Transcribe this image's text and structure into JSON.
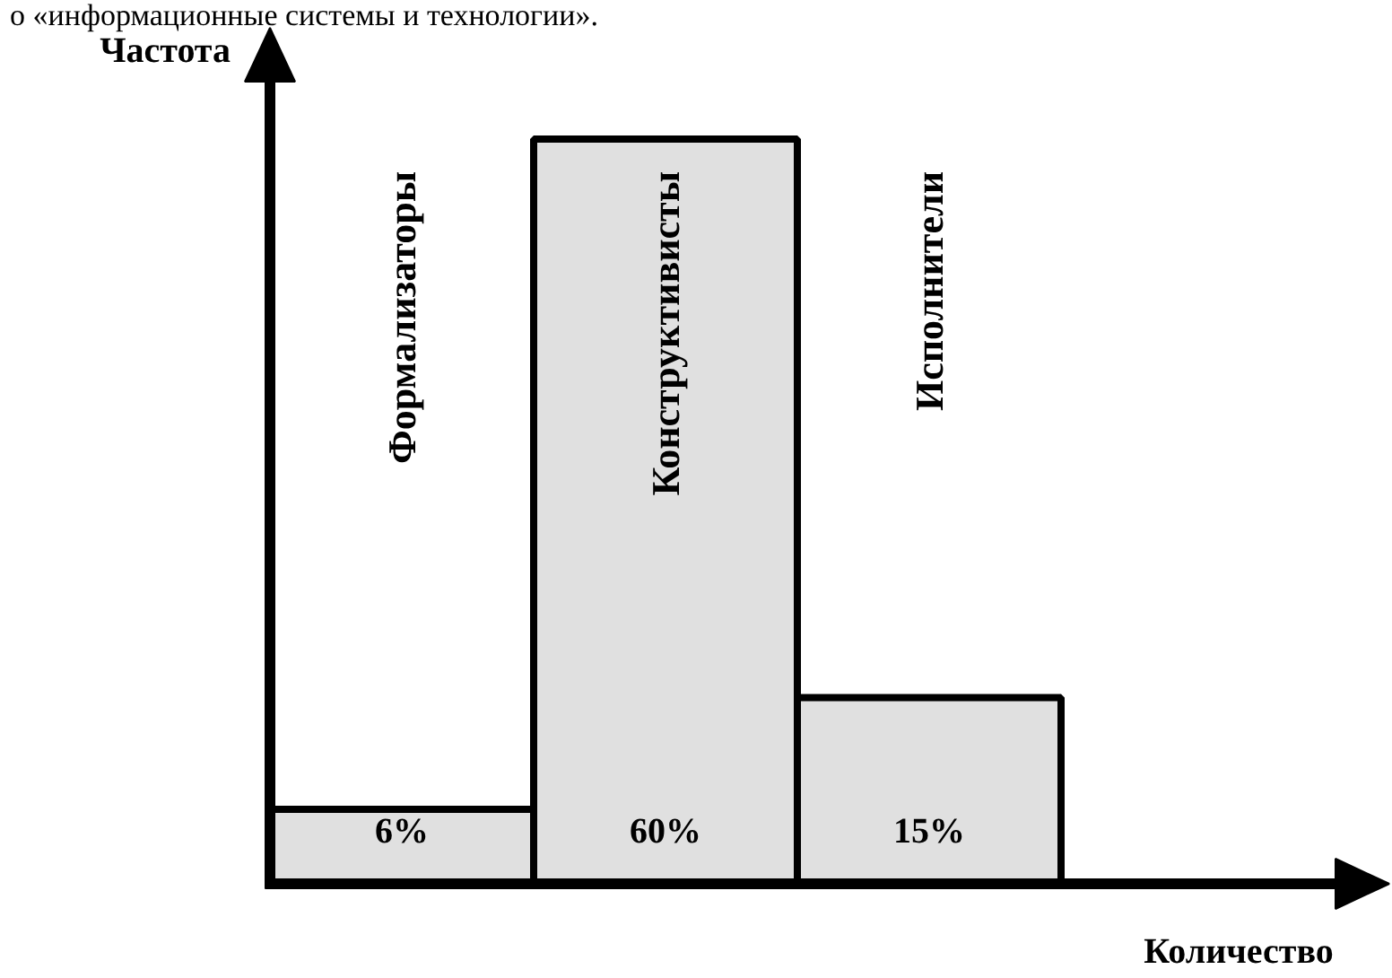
{
  "chart_data": {
    "type": "bar",
    "annotations": [
      "о «информационные системы и технологии»."
    ],
    "xlabel": "Количество",
    "ylabel": "Частота",
    "categories": [
      "Формализаторы",
      "Конструктивисты",
      "Исполнители"
    ],
    "values": [
      6,
      60,
      15
    ],
    "value_labels": [
      "6%",
      "60%",
      "15%"
    ],
    "color": "#e0e0e0",
    "grid": false,
    "legend": false
  }
}
